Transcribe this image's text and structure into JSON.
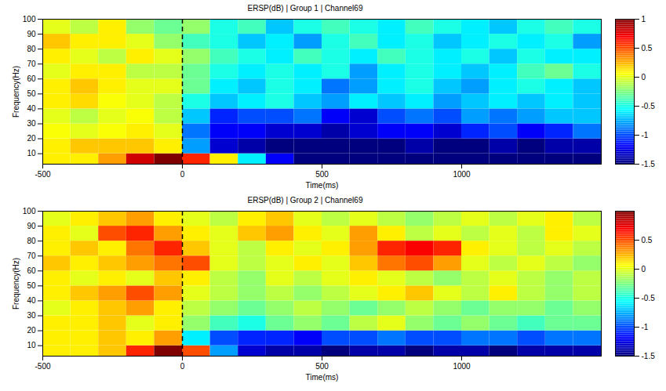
{
  "chart_data": [
    {
      "type": "heatmap",
      "title": "ERSP(dB) | Group 1 | Channel69",
      "x_label": "Time(ms)",
      "y_label": "Frequency(Hz)",
      "xlim": [
        -500,
        1500
      ],
      "xticks": [
        -500,
        0,
        500,
        1000
      ],
      "ylim": [
        3,
        100
      ],
      "yticks": [
        10,
        20,
        30,
        40,
        50,
        60,
        70,
        80,
        90,
        100
      ],
      "event_time": 0,
      "line_style": "dashed",
      "color": "jet",
      "x_edges": [
        -500,
        -400,
        -300,
        -200,
        -100,
        0,
        100,
        200,
        300,
        400,
        500,
        600,
        700,
        800,
        900,
        1000,
        1100,
        1200,
        1300,
        1400,
        1500
      ],
      "y_edges": [
        3,
        10,
        20,
        30,
        40,
        50,
        60,
        70,
        80,
        90,
        100
      ],
      "values": [
        [
          0.1,
          0.1,
          0.3,
          0.8,
          1,
          0.6,
          0.1,
          -0.6,
          -1.2,
          -1.5,
          -1.5,
          -1.5,
          -1.5,
          -1.5,
          -1.5,
          -1.5,
          -1.5,
          -1.5,
          -1.5,
          -1.5
        ],
        [
          0.1,
          0.2,
          0.2,
          0.2,
          0.1,
          -0.8,
          -1.3,
          -1.4,
          -1.5,
          -1.5,
          -1.5,
          -1.5,
          -1.5,
          -1.4,
          -1.5,
          -1.5,
          -1.4,
          -1.5,
          -1.4,
          -1.4
        ],
        [
          0.05,
          0,
          0.05,
          0.1,
          0,
          -0.9,
          -1.2,
          -1.2,
          -1.3,
          -1.3,
          -1.4,
          -1.3,
          -1.2,
          -1.2,
          -1.3,
          -1.1,
          -1.0,
          -1.2,
          -1.1,
          -0.9
        ],
        [
          0,
          -0.1,
          0,
          0.05,
          -0.1,
          -0.7,
          -1.1,
          -1.0,
          -1.0,
          -0.9,
          -1.2,
          -1.3,
          -1.0,
          -0.9,
          -1.0,
          -0.8,
          -0.9,
          -0.8,
          -0.7,
          -0.7
        ],
        [
          0.1,
          0.15,
          0.05,
          0,
          -0.1,
          -0.5,
          -0.7,
          -0.6,
          -0.5,
          -0.7,
          -0.8,
          -0.6,
          -0.7,
          -0.6,
          -0.8,
          -0.7,
          -0.6,
          -0.7,
          -0.6,
          -0.7
        ],
        [
          0.1,
          0.2,
          0.1,
          0,
          0,
          -0.3,
          -0.6,
          -0.7,
          -0.5,
          -0.6,
          -0.9,
          -0.8,
          -0.6,
          -0.5,
          -0.7,
          -0.8,
          -0.6,
          -0.5,
          -0.6,
          -0.7
        ],
        [
          0,
          0.1,
          0.1,
          -0.1,
          -0.1,
          -0.3,
          -0.5,
          -0.6,
          -0.5,
          -0.6,
          -0.5,
          -0.8,
          -0.6,
          -0.5,
          -0.6,
          -0.7,
          -0.6,
          -0.4,
          -0.3,
          -0.5
        ],
        [
          0.1,
          0,
          -0.1,
          0.1,
          0,
          -0.2,
          -0.4,
          -0.5,
          -0.6,
          -0.4,
          -0.5,
          -0.6,
          -0.4,
          -0.5,
          -0.6,
          -0.5,
          -0.7,
          -0.5,
          -0.6,
          -0.6
        ],
        [
          0.2,
          0.1,
          0.1,
          0,
          -0.2,
          -0.4,
          -0.5,
          -0.7,
          -0.6,
          -0.8,
          -0.5,
          -0.4,
          -0.6,
          -0.5,
          -0.7,
          -0.6,
          -0.5,
          -0.6,
          -0.5,
          -0.8
        ],
        [
          0,
          -0.1,
          0.1,
          -0.2,
          -0.3,
          -0.2,
          -0.5,
          -0.4,
          -0.7,
          -0.5,
          -0.4,
          -0.5,
          -0.6,
          -0.4,
          -0.5,
          -0.6,
          -0.7,
          -0.5,
          -0.4,
          -0.5
        ]
      ],
      "colorbar": {
        "range": [
          -1.5,
          1
        ],
        "ticks": [
          -1.5,
          -1,
          -0.5,
          0,
          0.5,
          1
        ]
      }
    },
    {
      "type": "heatmap",
      "title": "ERSP(dB) | Group 2 | Channel69",
      "x_label": "Time(ms)",
      "y_label": "Frequency(Hz)",
      "xlim": [
        -500,
        1500
      ],
      "xticks": [
        -500,
        0,
        500,
        1000
      ],
      "ylim": [
        3,
        100
      ],
      "yticks": [
        10,
        20,
        30,
        40,
        50,
        60,
        70,
        80,
        90,
        100
      ],
      "event_time": 0,
      "line_style": "dashed",
      "color": "jet",
      "x_edges": [
        -500,
        -400,
        -300,
        -200,
        -100,
        0,
        100,
        200,
        300,
        400,
        500,
        600,
        700,
        800,
        900,
        1000,
        1100,
        1200,
        1300,
        1400,
        1500
      ],
      "y_edges": [
        3,
        10,
        20,
        30,
        40,
        50,
        60,
        70,
        80,
        90,
        100
      ],
      "values": [
        [
          0.1,
          0.1,
          0.2,
          0.6,
          1,
          0.5,
          -0.8,
          -1.3,
          -1.4,
          -1.4,
          -1.5,
          -1.4,
          -1.4,
          -1.5,
          -1.4,
          -1.4,
          -1.5,
          -1.4,
          -1.4,
          -1.4
        ],
        [
          0.1,
          0.1,
          0.2,
          0.1,
          0.3,
          -0.6,
          -1.0,
          -1.1,
          -1.1,
          -1.2,
          -1.0,
          -1.0,
          -0.9,
          -1.0,
          -1.0,
          -0.9,
          -0.9,
          -1.0,
          -0.9,
          -0.9
        ],
        [
          0.1,
          0.1,
          0.2,
          0.0,
          0.1,
          -0.2,
          -0.4,
          -0.5,
          -0.3,
          -0.2,
          -0.3,
          -0.1,
          0.0,
          -0.2,
          -0.3,
          -0.2,
          -0.3,
          -0.4,
          -0.3,
          -0.3
        ],
        [
          0.0,
          0.1,
          0.2,
          0.3,
          0.1,
          -0.1,
          -0.2,
          -0.3,
          -0.2,
          -0.1,
          -0.2,
          -0.3,
          -0.2,
          -0.1,
          -0.2,
          -0.3,
          -0.2,
          -0.2,
          -0.3,
          -0.2
        ],
        [
          0.1,
          0.2,
          0.3,
          0.5,
          0.3,
          0.0,
          -0.1,
          -0.2,
          -0.1,
          -0.2,
          -0.1,
          0.0,
          0.1,
          0.2,
          0.0,
          -0.1,
          0.1,
          -0.1,
          -0.2,
          -0.1
        ],
        [
          0.1,
          0.0,
          0.1,
          0.0,
          0.2,
          0.1,
          -0.1,
          -0.2,
          0.0,
          -0.1,
          0.0,
          0.1,
          0.0,
          -0.1,
          -0.2,
          -0.1,
          0.0,
          -0.1,
          -0.2,
          -0.1
        ],
        [
          0.2,
          0.1,
          0.2,
          0.3,
          0.4,
          0.5,
          0.0,
          -0.1,
          0.0,
          0.1,
          0.0,
          0.2,
          0.4,
          0.5,
          0.3,
          0.0,
          -0.1,
          0.0,
          -0.1,
          -0.2
        ],
        [
          0.1,
          0.2,
          0.1,
          0.4,
          0.6,
          0.2,
          0.0,
          -0.1,
          0.1,
          0.0,
          0.1,
          0.3,
          0.6,
          0.7,
          0.6,
          0.1,
          0.0,
          -0.1,
          0.0,
          -0.1
        ],
        [
          0.1,
          0.0,
          0.5,
          0.6,
          0.3,
          0.1,
          0.0,
          0.2,
          0.3,
          0.1,
          0.0,
          0.3,
          0.1,
          -0.1,
          0.0,
          -0.1,
          0.0,
          -0.1,
          0.1,
          0.0
        ],
        [
          0.0,
          0.1,
          0.2,
          0.3,
          0.1,
          0.0,
          -0.1,
          0.1,
          0.2,
          0.0,
          -0.1,
          0.0,
          -0.1,
          -0.2,
          -0.1,
          0.0,
          -0.1,
          0.0,
          0.1,
          -0.1
        ]
      ],
      "colorbar": {
        "range": [
          -1.5,
          1
        ],
        "ticks": [
          -1.5,
          -1,
          -0.5,
          0,
          0.5
        ]
      }
    }
  ]
}
